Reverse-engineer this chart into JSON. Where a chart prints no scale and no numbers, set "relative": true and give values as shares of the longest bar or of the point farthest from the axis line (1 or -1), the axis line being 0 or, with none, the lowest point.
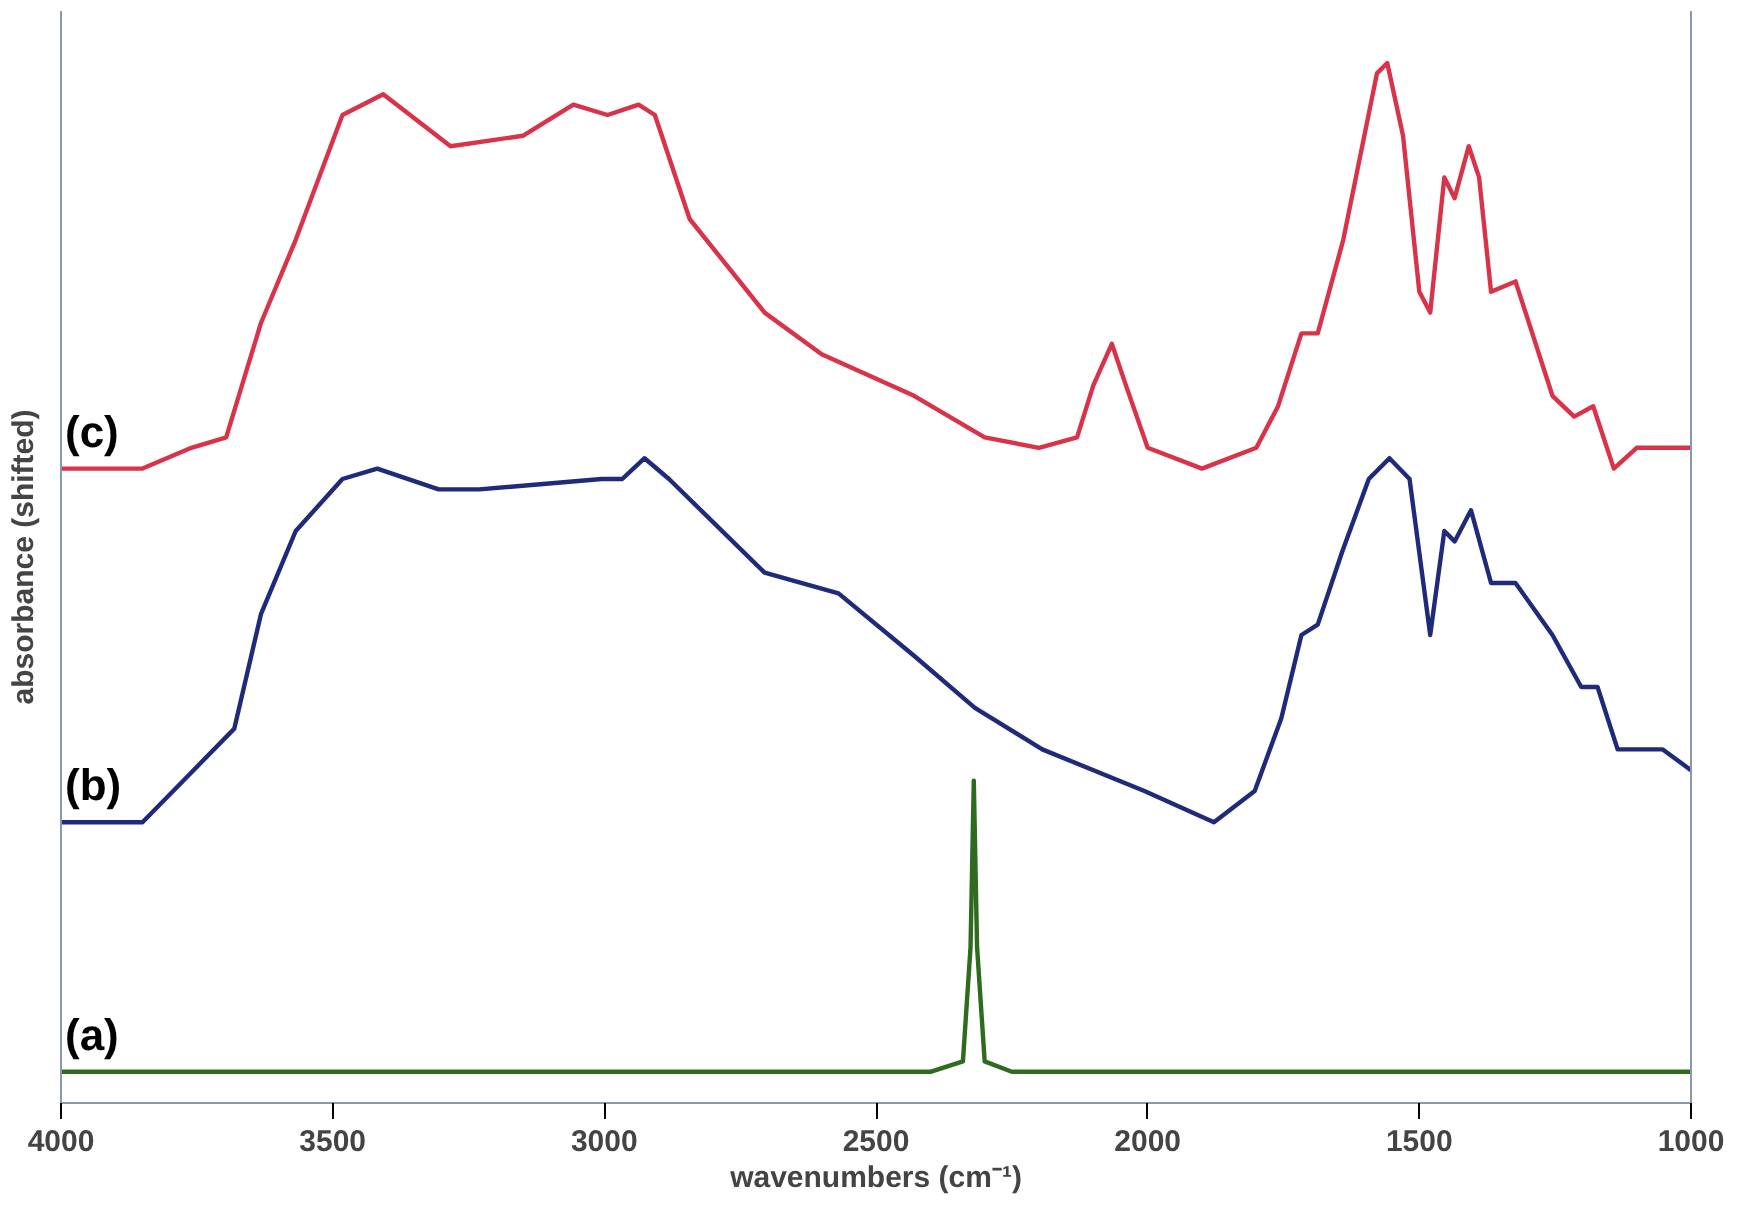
{
  "chart_data": {
    "type": "line",
    "relative": true,
    "xlabel": "wavenumbers (cm⁻¹)",
    "ylabel": "absorbance (shifted)",
    "xlim": [
      4000,
      1000
    ],
    "xticks": [
      4000,
      3500,
      3000,
      2500,
      2000,
      1500,
      1000
    ],
    "grid": false,
    "legend": false,
    "marker": "none",
    "line_style": "solid",
    "series": [
      {
        "name": "(a)",
        "color": "#2e6b1e",
        "x": [
          4000,
          2400,
          2340,
          2326,
          2320,
          2314,
          2300,
          2250,
          1000
        ],
        "values": [
          0.03,
          0.03,
          0.04,
          0.15,
          0.31,
          0.15,
          0.04,
          0.03,
          0.03
        ]
      },
      {
        "name": "(b)",
        "color": "#1f2a7a",
        "x": [
          4000,
          3850,
          3756,
          3681,
          3632,
          3568,
          3482,
          3418,
          3305,
          3230,
          3005,
          2967,
          2926,
          2881,
          2705,
          2569,
          2430,
          2318,
          2194,
          2006,
          1878,
          1803,
          1754,
          1717,
          1687,
          1642,
          1593,
          1555,
          1518,
          1480,
          1454,
          1435,
          1405,
          1368,
          1323,
          1255,
          1202,
          1172,
          1135,
          1052,
          1000
        ],
        "values": [
          0.27,
          0.27,
          0.32,
          0.36,
          0.47,
          0.55,
          0.6,
          0.61,
          0.59,
          0.59,
          0.6,
          0.6,
          0.62,
          0.6,
          0.51,
          0.49,
          0.43,
          0.38,
          0.34,
          0.3,
          0.27,
          0.3,
          0.37,
          0.45,
          0.46,
          0.53,
          0.6,
          0.62,
          0.6,
          0.45,
          0.55,
          0.54,
          0.57,
          0.5,
          0.5,
          0.45,
          0.4,
          0.4,
          0.34,
          0.34,
          0.32
        ]
      },
      {
        "name": "(c)",
        "color": "#d9334a",
        "x": [
          4000,
          3850,
          3760,
          3696,
          3632,
          3568,
          3482,
          3407,
          3283,
          3150,
          3057,
          2994,
          2937,
          2907,
          2843,
          2705,
          2600,
          2430,
          2300,
          2200,
          2130,
          2100,
          2066,
          2040,
          2000,
          1900,
          1800,
          1760,
          1717,
          1687,
          1640,
          1578,
          1559,
          1530,
          1500,
          1480,
          1454,
          1435,
          1409,
          1390,
          1368,
          1323,
          1255,
          1215,
          1180,
          1142,
          1100,
          1052,
          1000
        ],
        "values": [
          0.61,
          0.61,
          0.63,
          0.64,
          0.75,
          0.83,
          0.95,
          0.97,
          0.92,
          0.93,
          0.96,
          0.95,
          0.96,
          0.95,
          0.85,
          0.76,
          0.72,
          0.68,
          0.64,
          0.63,
          0.64,
          0.69,
          0.73,
          0.69,
          0.63,
          0.61,
          0.63,
          0.67,
          0.74,
          0.74,
          0.83,
          0.99,
          1.0,
          0.93,
          0.78,
          0.76,
          0.89,
          0.87,
          0.92,
          0.89,
          0.78,
          0.79,
          0.68,
          0.66,
          0.67,
          0.61,
          0.63,
          0.63,
          0.63
        ]
      }
    ]
  }
}
